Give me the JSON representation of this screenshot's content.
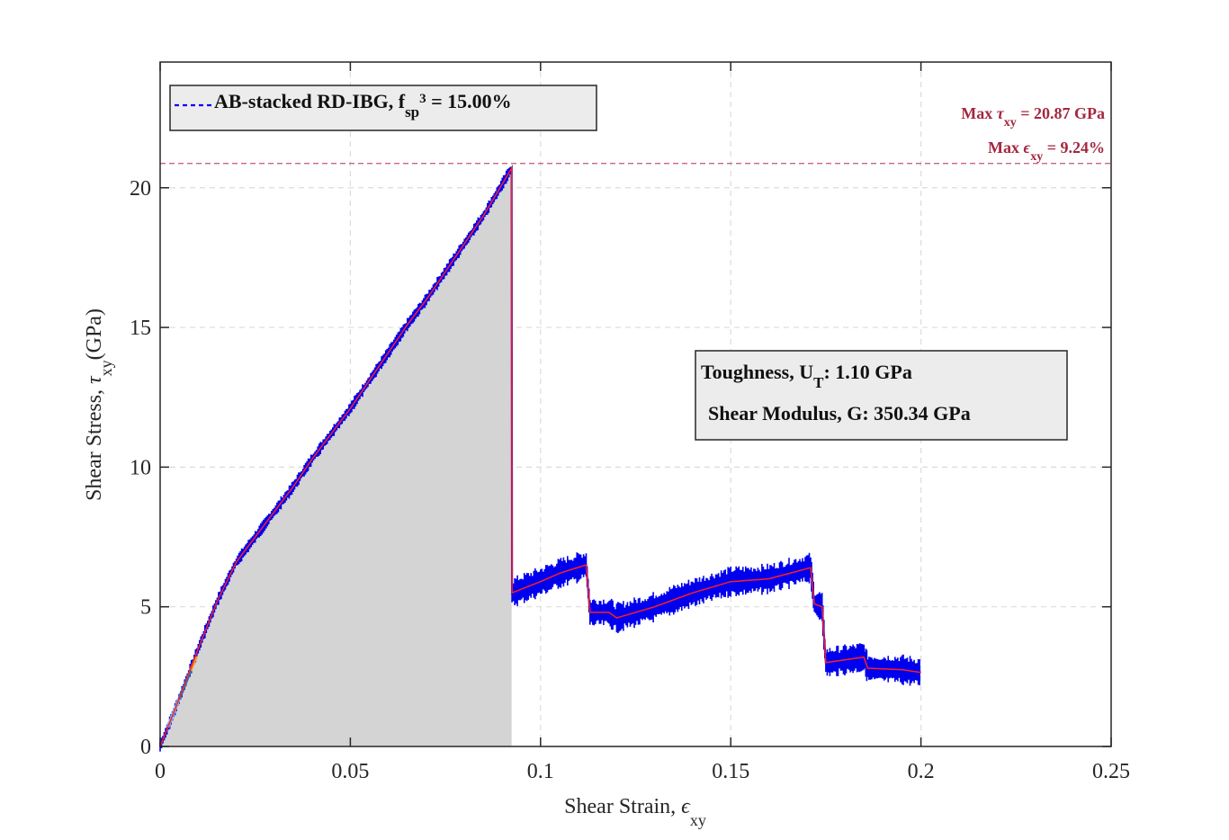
{
  "chart_data": {
    "type": "line",
    "xlabel": "Shear Strain, ",
    "xlabel_symbol": "ϵ",
    "xlabel_sub": "xy",
    "ylabel": "Shear Stress, ",
    "ylabel_symbol": "τ",
    "ylabel_sub": "xy",
    "ylabel_unit": "(GPa)",
    "xlim": [
      0,
      0.25
    ],
    "ylim": [
      0,
      24.5
    ],
    "x_ticks": [
      0,
      0.05,
      0.1,
      0.15,
      0.2,
      0.25
    ],
    "x_tick_labels": [
      "0",
      "0.05",
      "0.1",
      "0.15",
      "0.2",
      "0.25"
    ],
    "y_ticks": [
      0,
      5,
      10,
      15,
      20
    ],
    "y_tick_labels": [
      "0",
      "5",
      "10",
      "15",
      "20"
    ],
    "grid": true,
    "legend": {
      "placement": "top-left",
      "label_main": "AB-stacked RD-IBG, f",
      "label_sub": "sp",
      "label_sup": "3",
      "label_tail": " = 15.00%"
    },
    "max_annotation": {
      "max_stress_prefix": "Max ",
      "max_stress_symbol": "τ",
      "max_stress_sub": "xy",
      "max_stress_value": " = 20.87 GPa",
      "max_strain_prefix": "Max ",
      "max_strain_symbol": "ϵ",
      "max_strain_sub": "xy",
      "max_strain_value": " = 9.24%",
      "max_stress": 20.87,
      "max_strain": 0.0924
    },
    "properties_box": {
      "toughness_label": "Toughness, U",
      "toughness_sub": "T",
      "toughness_value": ": 1.10 GPa",
      "modulus_label": "Shear Modulus, G: 350.34 GPa"
    },
    "fill_region": {
      "from_x": 0,
      "to_x": 0.0924
    },
    "series": [
      {
        "points": [
          [
            0,
            0
          ],
          [
            0.005,
            1.7
          ],
          [
            0.01,
            3.5
          ],
          [
            0.015,
            5.2
          ],
          [
            0.02,
            6.6
          ],
          [
            0.025,
            7.5
          ],
          [
            0.03,
            8.4
          ],
          [
            0.035,
            9.3
          ],
          [
            0.04,
            10.3
          ],
          [
            0.045,
            11.2
          ],
          [
            0.05,
            12.1
          ],
          [
            0.055,
            13.1
          ],
          [
            0.06,
            14.1
          ],
          [
            0.065,
            15.1
          ],
          [
            0.07,
            16.0
          ],
          [
            0.075,
            17.0
          ],
          [
            0.08,
            18.0
          ],
          [
            0.085,
            19.0
          ],
          [
            0.0924,
            20.7
          ],
          [
            0.0925,
            5.5
          ],
          [
            0.1,
            5.9
          ],
          [
            0.105,
            6.2
          ],
          [
            0.112,
            6.5
          ],
          [
            0.113,
            4.8
          ],
          [
            0.118,
            4.8
          ],
          [
            0.12,
            4.6
          ],
          [
            0.13,
            5.0
          ],
          [
            0.14,
            5.5
          ],
          [
            0.15,
            5.9
          ],
          [
            0.16,
            6.0
          ],
          [
            0.171,
            6.4
          ],
          [
            0.172,
            5.1
          ],
          [
            0.174,
            5.0
          ],
          [
            0.175,
            3.0
          ],
          [
            0.185,
            3.2
          ],
          [
            0.186,
            2.8
          ],
          [
            0.195,
            2.75
          ],
          [
            0.2,
            2.65
          ]
        ]
      }
    ],
    "colors": {
      "raw": "#0000ee",
      "smoothed": "#ff2020",
      "fill": "#d4d4d4",
      "annotation": "#a3273f",
      "max_line": "#c2566f",
      "early_segments": [
        "#7fbfe6",
        "#1f77b4",
        "#f0a020"
      ]
    }
  }
}
